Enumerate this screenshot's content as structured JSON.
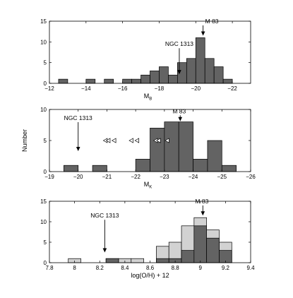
{
  "chart_data": [
    {
      "type": "bar",
      "xlabel_main": "M",
      "xlabel_sub": "B",
      "ylabel": "",
      "xlim": [
        -12,
        -23
      ],
      "ylim": [
        0,
        15
      ],
      "xticks": [
        -12,
        -14,
        -16,
        -18,
        -20,
        -22
      ],
      "xtick_labels": [
        "−12",
        "−14",
        "−16",
        "−18",
        "−20",
        "−22"
      ],
      "yticks": [
        0,
        5,
        10,
        15
      ],
      "bin_width": 0.5,
      "bins": [
        {
          "left": -13,
          "value": 1
        },
        {
          "left": -14.5,
          "value": 1
        },
        {
          "left": -15.5,
          "value": 1
        },
        {
          "left": -16.5,
          "value": 1
        },
        {
          "left": -17,
          "value": 1
        },
        {
          "left": -17.5,
          "value": 2
        },
        {
          "left": -18,
          "value": 3
        },
        {
          "left": -18.5,
          "value": 4
        },
        {
          "left": -19,
          "value": 2
        },
        {
          "left": -19.5,
          "value": 5
        },
        {
          "left": -20,
          "value": 6
        },
        {
          "left": -20.5,
          "value": 11
        },
        {
          "left": -21,
          "value": 6
        },
        {
          "left": -21.5,
          "value": 4
        },
        {
          "left": -22,
          "value": 1
        }
      ],
      "annotations": [
        {
          "label": "NGC 1313",
          "x": -19.1,
          "y": 9,
          "tip_y": 2.2,
          "label_anchor": "middle"
        },
        {
          "label": "M 83",
          "x": -20.4,
          "y": 14.5,
          "tip_y": 11.5,
          "label_anchor": "start"
        }
      ]
    },
    {
      "type": "bar",
      "xlabel_main": "M",
      "xlabel_sub": "K",
      "ylabel": "Number",
      "xlim": [
        -19,
        -26
      ],
      "ylim": [
        0,
        10
      ],
      "xticks": [
        -19,
        -20,
        -21,
        -22,
        -23,
        -24,
        -25,
        -26
      ],
      "xtick_labels": [
        "−19",
        "−20",
        "−21",
        "−22",
        "−23",
        "−24",
        "−25",
        "−26"
      ],
      "yticks": [
        0,
        5,
        10
      ],
      "bin_width": 0.5,
      "bins": [
        {
          "left": -20,
          "value": 1
        },
        {
          "left": -21,
          "value": 1
        },
        {
          "left": -22.5,
          "value": 2
        },
        {
          "left": -23,
          "value": 7
        },
        {
          "left": -23.5,
          "value": 8
        },
        {
          "left": -24,
          "value": 8
        },
        {
          "left": -24.5,
          "value": 2
        },
        {
          "left": -25,
          "value": 5
        },
        {
          "left": -25.5,
          "value": 1
        }
      ],
      "markers": [
        {
          "x": -20.95,
          "y": 5
        },
        {
          "x": -21.05,
          "y": 5
        },
        {
          "x": -21.25,
          "y": 5
        },
        {
          "x": -21.85,
          "y": 5
        },
        {
          "x": -22.05,
          "y": 5
        },
        {
          "x": -22.7,
          "y": 5
        },
        {
          "x": -22.8,
          "y": 5
        },
        {
          "x": -23.1,
          "y": 5
        }
      ],
      "annotations": [
        {
          "label": "NGC 1313",
          "x": -20.0,
          "y": 8.3,
          "tip_y": 3.3,
          "label_anchor": "middle"
        },
        {
          "label": "M 83",
          "x": -23.55,
          "y": 9.4,
          "tip_y": 8.1,
          "label_anchor": "end"
        }
      ]
    },
    {
      "type": "bar",
      "xlabel_main": "log(O/H) + 12",
      "xlabel_sub": "",
      "ylabel": "",
      "xlim": [
        7.8,
        9.4
      ],
      "ylim": [
        0,
        15
      ],
      "xticks": [
        7.8,
        8,
        8.2,
        8.4,
        8.6,
        8.8,
        9,
        9.2,
        9.4
      ],
      "xtick_labels": [
        "7.8",
        "8",
        "8.2",
        "8.4",
        "8.6",
        "8.8",
        "9",
        "9.2",
        "9.4"
      ],
      "yticks": [
        0,
        5,
        10,
        15
      ],
      "bin_width": 0.1,
      "series": [
        {
          "name": "",
          "color": "#d2d2d2",
          "bins": [
            {
              "left": 7.95,
              "value": 1
            },
            {
              "left": 8.25,
              "value": 1
            },
            {
              "left": 8.35,
              "value": 1
            },
            {
              "left": 8.45,
              "value": 1
            },
            {
              "left": 8.65,
              "value": 4
            },
            {
              "left": 8.75,
              "value": 5
            },
            {
              "left": 8.85,
              "value": 9
            },
            {
              "left": 8.95,
              "value": 11
            },
            {
              "left": 9.05,
              "value": 8
            },
            {
              "left": 9.15,
              "value": 5
            }
          ]
        },
        {
          "name": "",
          "color": "#636363",
          "bins": [
            {
              "left": 8.25,
              "value": 1
            },
            {
              "left": 8.65,
              "value": 1
            },
            {
              "left": 8.75,
              "value": 1
            },
            {
              "left": 8.85,
              "value": 3
            },
            {
              "left": 8.95,
              "value": 9
            },
            {
              "left": 9.05,
              "value": 6
            },
            {
              "left": 9.15,
              "value": 3
            }
          ]
        }
      ],
      "annotations": [
        {
          "label": "NGC 1313",
          "x": 8.24,
          "y": 11,
          "tip_y": 2.5,
          "label_anchor": "middle"
        },
        {
          "label": "M 83",
          "x": 9.02,
          "y": 14.5,
          "tip_y": 11.5,
          "label_anchor": "end"
        }
      ]
    }
  ],
  "colors": {
    "bar_dark": "#636363",
    "bar_light": "#d2d2d2",
    "marker_fill": "#ffffff"
  }
}
